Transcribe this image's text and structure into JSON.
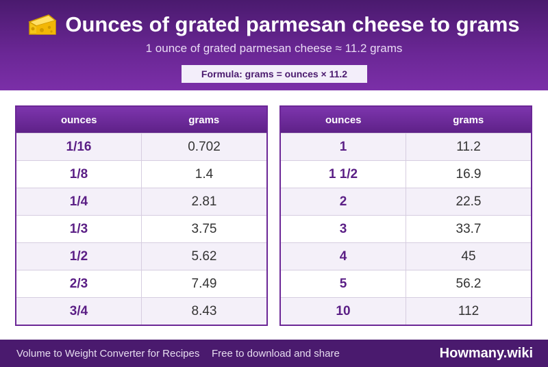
{
  "header": {
    "title": "Ounces of grated parmesan cheese to grams",
    "subtitle": "1 ounce of grated parmesan cheese ≈ 11.2 grams",
    "formula": "Formula: grams = ounces × 11.2",
    "icon": "cheese-icon"
  },
  "table_left": {
    "col_ounces": "ounces",
    "col_grams": "grams",
    "rows": [
      {
        "ounces": "1/16",
        "grams": "0.702"
      },
      {
        "ounces": "1/8",
        "grams": "1.4"
      },
      {
        "ounces": "1/4",
        "grams": "2.81"
      },
      {
        "ounces": "1/3",
        "grams": "3.75"
      },
      {
        "ounces": "1/2",
        "grams": "5.62"
      },
      {
        "ounces": "2/3",
        "grams": "7.49"
      },
      {
        "ounces": "3/4",
        "grams": "8.43"
      }
    ]
  },
  "table_right": {
    "col_ounces": "ounces",
    "col_grams": "grams",
    "rows": [
      {
        "ounces": "1",
        "grams": "11.2"
      },
      {
        "ounces": "1 1/2",
        "grams": "16.9"
      },
      {
        "ounces": "2",
        "grams": "22.5"
      },
      {
        "ounces": "3",
        "grams": "33.7"
      },
      {
        "ounces": "4",
        "grams": "45"
      },
      {
        "ounces": "5",
        "grams": "56.2"
      },
      {
        "ounces": "10",
        "grams": "112"
      }
    ]
  },
  "footer": {
    "left_text": "Volume to Weight Converter for Recipes",
    "middle_text": "Free to download and share",
    "brand": "Howmany.wiki"
  },
  "colors": {
    "primary": "#6b2796",
    "dark": "#4a1a6e",
    "accent_text": "#5a1e85"
  }
}
